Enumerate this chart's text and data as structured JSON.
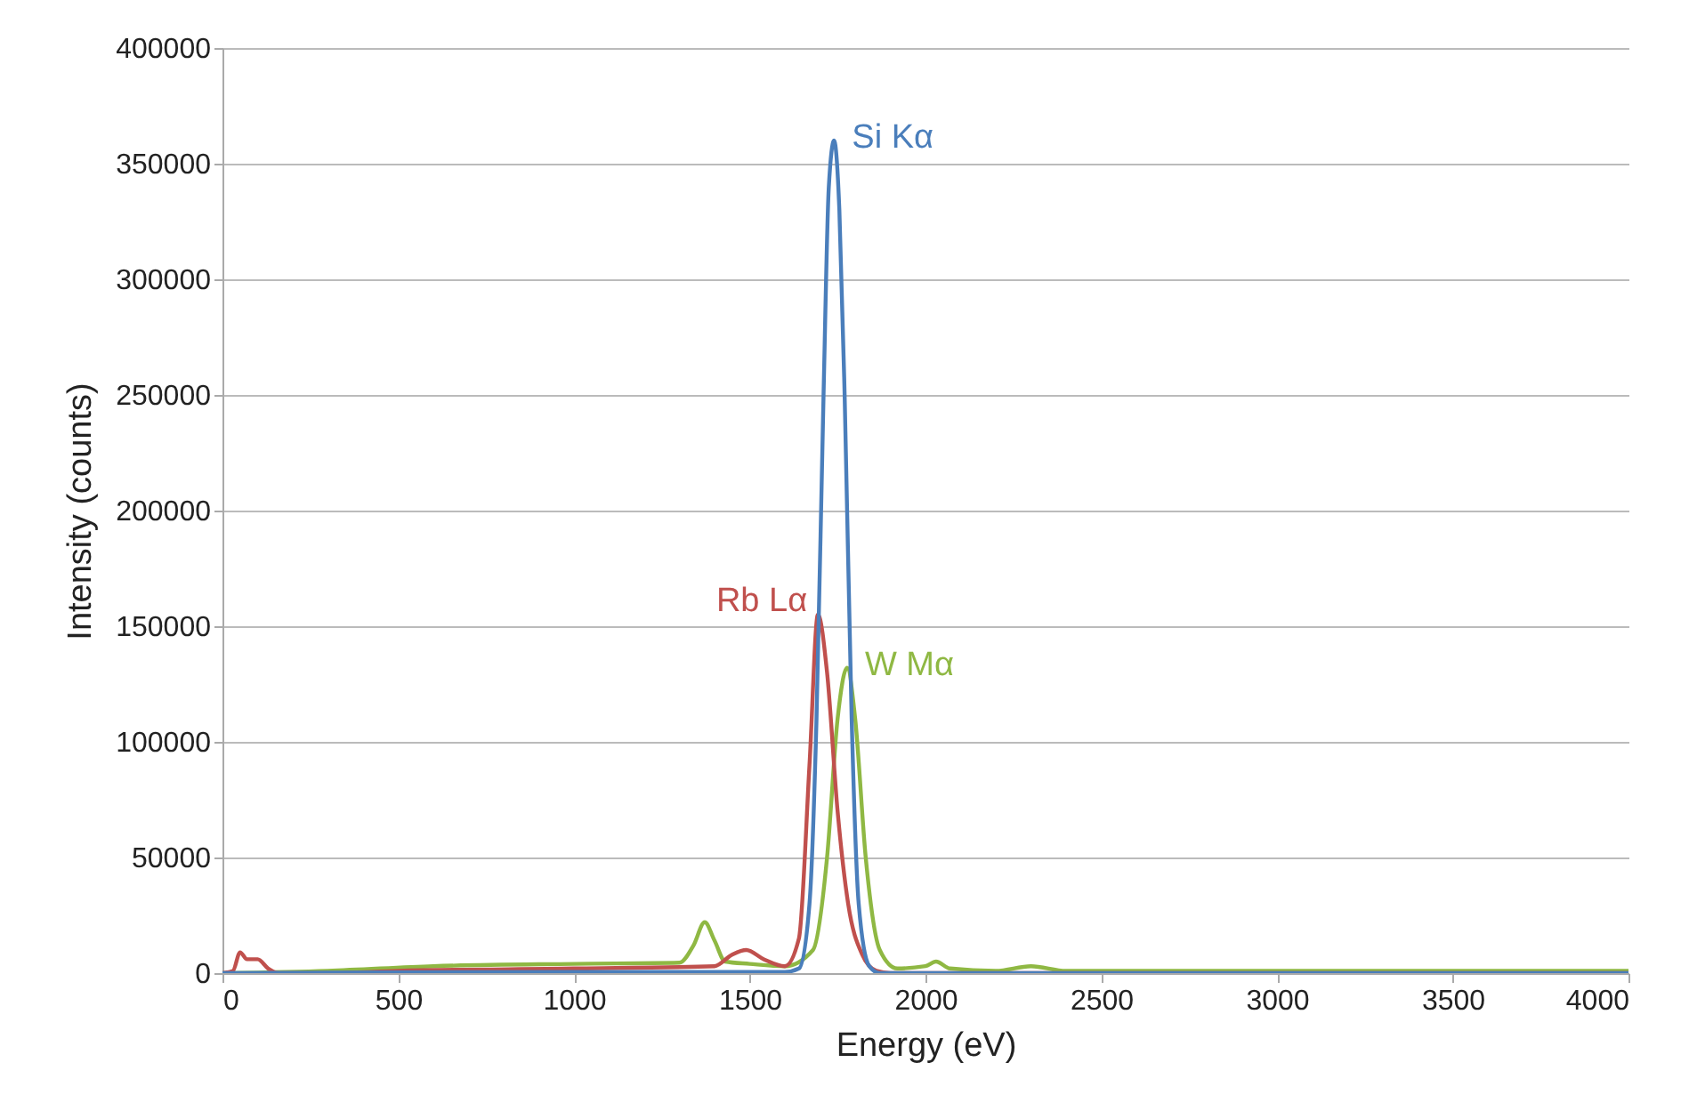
{
  "chart_data": {
    "type": "line",
    "xlabel": "Energy (eV)",
    "ylabel": "Intensity (counts)",
    "xlim": [
      0,
      4000
    ],
    "xticks": [
      0,
      500,
      1000,
      1500,
      2000,
      2500,
      3000,
      3500,
      4000
    ],
    "ylim": [
      0,
      400000
    ],
    "yticks": [
      0,
      50000,
      100000,
      150000,
      200000,
      250000,
      300000,
      350000,
      400000
    ],
    "grid": "y",
    "marker": "none",
    "line_style": "solid",
    "series": [
      {
        "color": "#8fb843",
        "x": [
          0,
          300,
          600,
          1000,
          1300,
          1340,
          1372,
          1400,
          1430,
          1500,
          1600,
          1680,
          1720,
          1750,
          1777,
          1800,
          1830,
          1870,
          1920,
          2000,
          2030,
          2070,
          2200,
          2300,
          2400,
          4000
        ],
        "values": [
          0,
          1000,
          3000,
          4000,
          4500,
          12000,
          22000,
          14000,
          5000,
          4000,
          3000,
          10000,
          50000,
          110000,
          132000,
          110000,
          50000,
          10000,
          2000,
          3000,
          5000,
          2000,
          1000,
          3000,
          1000,
          1000
        ]
      },
      {
        "color": "#c0504d",
        "x": [
          0,
          30,
          50,
          70,
          100,
          130,
          160,
          300,
          500,
          1000,
          1400,
          1450,
          1490,
          1540,
          1600,
          1640,
          1670,
          1694,
          1720,
          1750,
          1780,
          1820,
          1860,
          1900,
          4000
        ],
        "values": [
          0,
          1000,
          9000,
          6000,
          6000,
          2000,
          0,
          0,
          1000,
          2000,
          3000,
          8000,
          10000,
          6000,
          3000,
          15000,
          90000,
          155000,
          130000,
          70000,
          30000,
          8000,
          1000,
          0,
          0
        ]
      },
      {
        "color": "#4a7ebb",
        "x": [
          0,
          1000,
          1600,
          1640,
          1670,
          1690,
          1710,
          1725,
          1740,
          1755,
          1770,
          1790,
          1810,
          1840,
          1870,
          4000
        ],
        "values": [
          0,
          500,
          500,
          2000,
          30000,
          110000,
          250000,
          340000,
          360000,
          330000,
          250000,
          110000,
          30000,
          3000,
          0,
          0
        ]
      }
    ],
    "annotations": [
      {
        "text": "Si Kα",
        "x": 1740,
        "y": 360000
      },
      {
        "text": "Rb Lα",
        "x": 1694,
        "y": 155000
      },
      {
        "text": "W Mα",
        "x": 1777,
        "y": 132000
      }
    ]
  }
}
